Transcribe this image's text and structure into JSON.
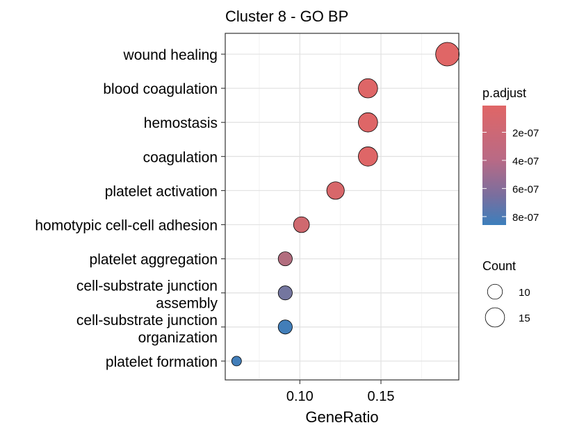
{
  "chart_data": {
    "type": "scatter",
    "title": "Cluster 8 - GO BP",
    "xlabel": "GeneRatio",
    "ylabel": "",
    "xlim": [
      0.054,
      0.198
    ],
    "xticks": [
      0.1,
      0.15
    ],
    "xtick_labels": [
      "0.10",
      "0.15"
    ],
    "grid": true,
    "categories": [
      [
        "wound healing"
      ],
      [
        "blood coagulation"
      ],
      [
        "hemostasis"
      ],
      [
        "coagulation"
      ],
      [
        "platelet activation"
      ],
      [
        "homotypic cell-cell adhesion"
      ],
      [
        "platelet aggregation"
      ],
      [
        "cell-substrate junction",
        "assembly"
      ],
      [
        "cell-substrate junction",
        "organization"
      ],
      [
        "platelet formation"
      ]
    ],
    "points": [
      {
        "term": "wound healing",
        "gene_ratio": 0.191,
        "count": 20,
        "p_adjust": 1e-08
      },
      {
        "term": "blood coagulation",
        "gene_ratio": 0.142,
        "count": 15,
        "p_adjust": 2e-08
      },
      {
        "term": "hemostasis",
        "gene_ratio": 0.142,
        "count": 15,
        "p_adjust": 2e-08
      },
      {
        "term": "coagulation",
        "gene_ratio": 0.142,
        "count": 15,
        "p_adjust": 2e-08
      },
      {
        "term": "platelet activation",
        "gene_ratio": 0.122,
        "count": 13,
        "p_adjust": 5e-08
      },
      {
        "term": "homotypic cell-cell adhesion",
        "gene_ratio": 0.101,
        "count": 11,
        "p_adjust": 1e-07
      },
      {
        "term": "platelet aggregation",
        "gene_ratio": 0.091,
        "count": 9,
        "p_adjust": 2.5e-07
      },
      {
        "term": "cell-substrate junction assembly",
        "gene_ratio": 0.091,
        "count": 9,
        "p_adjust": 5.7e-07
      },
      {
        "term": "cell-substrate junction organization",
        "gene_ratio": 0.091,
        "count": 9,
        "p_adjust": 8.3e-07
      },
      {
        "term": "platelet formation",
        "gene_ratio": 0.061,
        "count": 4,
        "p_adjust": 8.3e-07
      }
    ],
    "color_scale": {
      "title": "p.adjust",
      "low_color": "#E06666",
      "high_color": "#3C7FBC",
      "domain": [
        1e-08,
        8.6e-07
      ],
      "ticks": [
        2e-07,
        4e-07,
        6e-07,
        8e-07
      ],
      "tick_labels": [
        "2e-07",
        "4e-07",
        "6e-07",
        "8e-07"
      ]
    },
    "size_scale": {
      "title": "Count",
      "domain": [
        4,
        20
      ],
      "breaks": [
        10,
        15
      ],
      "break_labels": [
        "10",
        "15"
      ]
    }
  }
}
